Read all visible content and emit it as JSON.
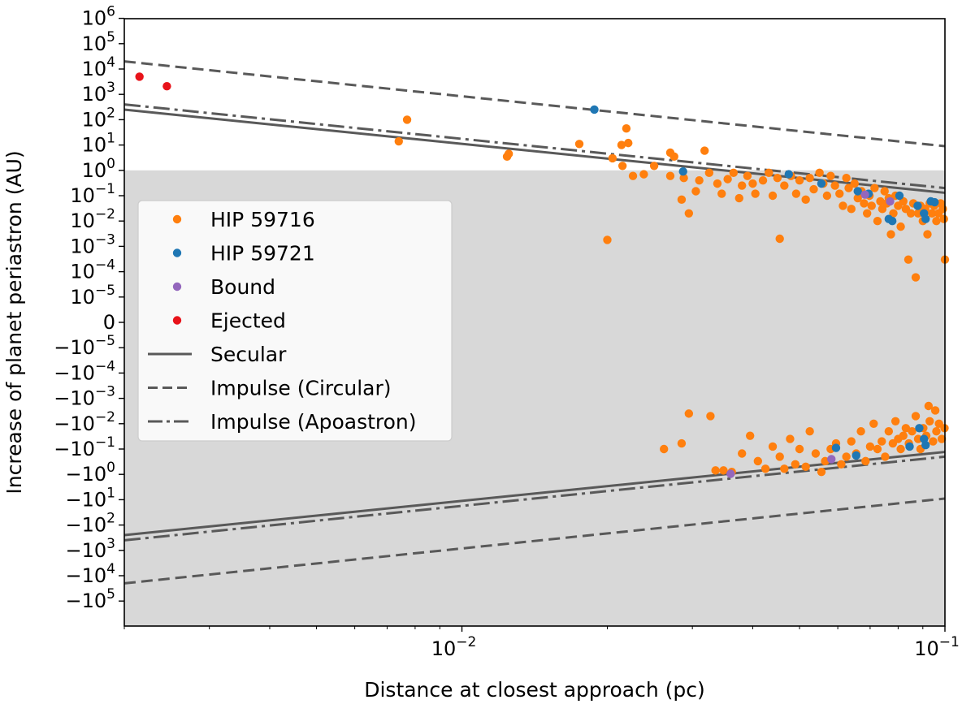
{
  "chart_data": {
    "type": "scatter",
    "xlabel": "Distance at closest approach (pc)",
    "ylabel": "Increase of planet periastron (AU)",
    "x_scale": "log",
    "y_scale": "symlog",
    "xlim": [
      0.002,
      0.1
    ],
    "ylim": [
      -1000000,
      1000000
    ],
    "x_ticks": [
      {
        "value": 0.01,
        "base": "10",
        "exp": "−2"
      },
      {
        "value": 0.1,
        "base": "10",
        "exp": "−1"
      }
    ],
    "y_ticks": [
      {
        "value": 1000000,
        "base": "10",
        "exp": "6"
      },
      {
        "value": 100000,
        "base": "10",
        "exp": "5"
      },
      {
        "value": 10000,
        "base": "10",
        "exp": "4"
      },
      {
        "value": 1000,
        "base": "10",
        "exp": "3"
      },
      {
        "value": 100,
        "base": "10",
        "exp": "2"
      },
      {
        "value": 10,
        "base": "10",
        "exp": "1"
      },
      {
        "value": 1,
        "base": "10",
        "exp": "0"
      },
      {
        "value": 0.1,
        "base": "10",
        "exp": "−1"
      },
      {
        "value": 0.01,
        "base": "10",
        "exp": "−2"
      },
      {
        "value": 0.001,
        "base": "10",
        "exp": "−3"
      },
      {
        "value": 0.0001,
        "base": "10",
        "exp": "−4"
      },
      {
        "value": 1e-05,
        "base": "10",
        "exp": "−5"
      },
      {
        "value": 0,
        "base": "0",
        "exp": ""
      },
      {
        "value": -1e-05,
        "base": "−10",
        "exp": "−5"
      },
      {
        "value": -0.0001,
        "base": "−10",
        "exp": "−4"
      },
      {
        "value": -0.001,
        "base": "−10",
        "exp": "−3"
      },
      {
        "value": -0.01,
        "base": "−10",
        "exp": "−2"
      },
      {
        "value": -0.1,
        "base": "−10",
        "exp": "−1"
      },
      {
        "value": -1,
        "base": "−10",
        "exp": "0"
      },
      {
        "value": -10,
        "base": "−10",
        "exp": "1"
      },
      {
        "value": -100,
        "base": "−10",
        "exp": "2"
      },
      {
        "value": -1000,
        "base": "−10",
        "exp": "3"
      },
      {
        "value": -10000,
        "base": "−10",
        "exp": "4"
      },
      {
        "value": -100000,
        "base": "−10",
        "exp": "5"
      }
    ],
    "shaded_region": {
      "y_from": -1000000,
      "y_to": 1,
      "color": "#d8d8d8"
    },
    "legend": {
      "location": "center-left",
      "entries": [
        {
          "label": "HIP 59716",
          "kind": "marker",
          "color": "#ff7f0e"
        },
        {
          "label": "HIP 59721",
          "kind": "marker",
          "color": "#1f77b4"
        },
        {
          "label": "Bound",
          "kind": "marker",
          "color": "#9467bd"
        },
        {
          "label": "Ejected",
          "kind": "marker",
          "color": "#e8131a"
        },
        {
          "label": "Secular",
          "kind": "line",
          "style": "solid",
          "color": "#595959"
        },
        {
          "label": "Impulse (Circular)",
          "kind": "line",
          "style": "dashed",
          "color": "#595959"
        },
        {
          "label": "Impulse (Apoastron)",
          "kind": "line",
          "style": "dashdot",
          "color": "#595959"
        }
      ]
    },
    "lines": [
      {
        "name": "Secular",
        "style": "solid",
        "color": "#595959",
        "upper": {
          "x": [
            0.002,
            0.1
          ],
          "y": [
            250,
            0.13
          ]
        },
        "lower": {
          "x": [
            0.002,
            0.1
          ],
          "y": [
            -250,
            -0.13
          ]
        }
      },
      {
        "name": "Impulse (Circular)",
        "style": "dashed",
        "color": "#595959",
        "upper": {
          "x": [
            0.002,
            0.1
          ],
          "y": [
            20000,
            9
          ]
        },
        "lower": {
          "x": [
            0.002,
            0.1
          ],
          "y": [
            -20000,
            -9
          ]
        }
      },
      {
        "name": "Impulse (Apoastron)",
        "style": "dashdot",
        "color": "#595959",
        "upper": {
          "x": [
            0.002,
            0.1
          ],
          "y": [
            400,
            0.2
          ]
        },
        "lower": {
          "x": [
            0.002,
            0.1
          ],
          "y": [
            -400,
            -0.2
          ]
        }
      }
    ],
    "series": [
      {
        "name": "HIP 59716",
        "color": "#ff7f0e",
        "points": [
          [
            0.0074,
            14
          ],
          [
            0.0077,
            100
          ],
          [
            0.0125,
            4.5
          ],
          [
            0.0124,
            3.5
          ],
          [
            0.0175,
            11
          ],
          [
            0.02,
            0.0018
          ],
          [
            0.0205,
            3
          ],
          [
            0.0214,
            10
          ],
          [
            0.0219,
            45
          ],
          [
            0.0221,
            12
          ],
          [
            0.0215,
            1.5
          ],
          [
            0.0226,
            0.6
          ],
          [
            0.0238,
            0.7
          ],
          [
            0.025,
            1.5
          ],
          [
            0.027,
            0.6
          ],
          [
            0.027,
            5
          ],
          [
            0.0275,
            3.5
          ],
          [
            0.0285,
            0.07
          ],
          [
            0.0288,
            0.5
          ],
          [
            0.0295,
            0.02
          ],
          [
            0.0305,
            0.15
          ],
          [
            0.031,
            0.4
          ],
          [
            0.0318,
            6
          ],
          [
            0.0325,
            0.8
          ],
          [
            0.0338,
            0.3
          ],
          [
            0.0345,
            0.12
          ],
          [
            0.0355,
            0.45
          ],
          [
            0.0365,
            0.8
          ],
          [
            0.0375,
            0.08
          ],
          [
            0.038,
            0.25
          ],
          [
            0.039,
            0.6
          ],
          [
            0.04,
            0.3
          ],
          [
            0.0405,
            0.12
          ],
          [
            0.042,
            0.4
          ],
          [
            0.0432,
            0.8
          ],
          [
            0.044,
            0.1
          ],
          [
            0.045,
            0.5
          ],
          [
            0.0455,
            0.002
          ],
          [
            0.0465,
            0.25
          ],
          [
            0.048,
            0.6
          ],
          [
            0.0492,
            0.12
          ],
          [
            0.05,
            0.4
          ],
          [
            0.0515,
            0.07
          ],
          [
            0.0525,
            0.5
          ],
          [
            0.0535,
            0.18
          ],
          [
            0.055,
            0.8
          ],
          [
            0.056,
            0.3
          ],
          [
            0.057,
            0.1
          ],
          [
            0.058,
            0.6
          ],
          [
            0.0592,
            0.25
          ],
          [
            0.0605,
            0.12
          ],
          [
            0.0615,
            0.04
          ],
          [
            0.0625,
            0.5
          ],
          [
            0.0632,
            0.2
          ],
          [
            0.064,
            0.03
          ],
          [
            0.065,
            0.3
          ],
          [
            0.066,
            0.08
          ],
          [
            0.0672,
            0.15
          ],
          [
            0.068,
            0.05
          ],
          [
            0.069,
            0.02
          ],
          [
            0.0698,
            0.1
          ],
          [
            0.0705,
            0.04
          ],
          [
            0.0715,
            0.2
          ],
          [
            0.0725,
            0.01
          ],
          [
            0.0735,
            0.06
          ],
          [
            0.0742,
            0.03
          ],
          [
            0.075,
            0.15
          ],
          [
            0.0758,
            0.05
          ],
          [
            0.0765,
            0.08
          ],
          [
            0.0773,
            0.003
          ],
          [
            0.0782,
            0.02
          ],
          [
            0.079,
            0.1
          ],
          [
            0.08,
            0.04
          ],
          [
            0.081,
            0.006
          ],
          [
            0.082,
            0.06
          ],
          [
            0.083,
            0.03
          ],
          [
            0.084,
            0.0003
          ],
          [
            0.085,
            0.02
          ],
          [
            0.086,
            0.05
          ],
          [
            0.087,
            6e-05
          ],
          [
            0.088,
            0.02
          ],
          [
            0.089,
            0.04
          ],
          [
            0.09,
            0.01
          ],
          [
            0.091,
            0.03
          ],
          [
            0.092,
            0.003
          ],
          [
            0.093,
            0.05
          ],
          [
            0.094,
            0.02
          ],
          [
            0.095,
            0.04
          ],
          [
            0.096,
            0.01
          ],
          [
            0.097,
            0.02
          ],
          [
            0.098,
            0.05
          ],
          [
            0.099,
            0.03
          ],
          [
            0.1,
            0.0003
          ],
          [
            0.0995,
            0.012
          ],
          [
            0.0295,
            -0.004
          ],
          [
            0.0327,
            -0.005
          ],
          [
            0.0262,
            -0.1
          ],
          [
            0.0285,
            -0.06
          ],
          [
            0.0335,
            -0.7
          ],
          [
            0.0348,
            -0.7
          ],
          [
            0.0362,
            -0.8
          ],
          [
            0.038,
            -0.15
          ],
          [
            0.0395,
            -0.03
          ],
          [
            0.041,
            -0.3
          ],
          [
            0.0425,
            -0.6
          ],
          [
            0.044,
            -0.08
          ],
          [
            0.0455,
            -0.2
          ],
          [
            0.0465,
            -0.6
          ],
          [
            0.0478,
            -0.04
          ],
          [
            0.049,
            -0.4
          ],
          [
            0.05,
            -0.1
          ],
          [
            0.0515,
            -0.5
          ],
          [
            0.0525,
            -0.02
          ],
          [
            0.054,
            -0.15
          ],
          [
            0.0555,
            -0.8
          ],
          [
            0.0565,
            -0.3
          ],
          [
            0.058,
            -0.1
          ],
          [
            0.0595,
            -0.06
          ],
          [
            0.061,
            -0.4
          ],
          [
            0.0625,
            -0.2
          ],
          [
            0.064,
            -0.05
          ],
          [
            0.0655,
            -0.15
          ],
          [
            0.067,
            -0.02
          ],
          [
            0.0685,
            -0.3
          ],
          [
            0.07,
            -0.08
          ],
          [
            0.0712,
            -0.01
          ],
          [
            0.0725,
            -0.1
          ],
          [
            0.074,
            -0.05
          ],
          [
            0.0752,
            -0.2
          ],
          [
            0.0765,
            -0.02
          ],
          [
            0.078,
            -0.06
          ],
          [
            0.079,
            -0.008
          ],
          [
            0.08,
            -0.04
          ],
          [
            0.081,
            -0.1
          ],
          [
            0.082,
            -0.03
          ],
          [
            0.083,
            -0.015
          ],
          [
            0.0842,
            -0.06
          ],
          [
            0.0855,
            -0.02
          ],
          [
            0.087,
            -0.005
          ],
          [
            0.088,
            -0.04
          ],
          [
            0.089,
            -0.1
          ],
          [
            0.0902,
            -0.015
          ],
          [
            0.0915,
            -0.03
          ],
          [
            0.093,
            -0.008
          ],
          [
            0.0945,
            -0.05
          ],
          [
            0.096,
            -0.02
          ],
          [
            0.0972,
            -0.01
          ],
          [
            0.0985,
            -0.04
          ],
          [
            0.0998,
            -0.015
          ],
          [
            0.0925,
            -0.002
          ],
          [
            0.0955,
            -0.003
          ]
        ]
      },
      {
        "name": "HIP 59721",
        "color": "#1f77b4",
        "points": [
          [
            0.0188,
            250
          ],
          [
            0.0287,
            0.9
          ],
          [
            0.0475,
            0.7
          ],
          [
            0.0555,
            0.3
          ],
          [
            0.066,
            0.15
          ],
          [
            0.0695,
            0.12
          ],
          [
            0.0765,
            0.012
          ],
          [
            0.0778,
            0.01
          ],
          [
            0.0805,
            0.1
          ],
          [
            0.0878,
            0.04
          ],
          [
            0.0905,
            0.02
          ],
          [
            0.0912,
            0.012
          ],
          [
            0.0935,
            0.06
          ],
          [
            0.0952,
            0.055
          ],
          [
            0.0595,
            -0.09
          ],
          [
            0.0655,
            -0.18
          ],
          [
            0.0845,
            -0.08
          ],
          [
            0.0885,
            -0.015
          ],
          [
            0.0905,
            -0.04
          ],
          [
            0.0912,
            -0.07
          ]
        ]
      },
      {
        "name": "Bound",
        "color": "#9467bd",
        "points": [
          [
            0.0683,
            0.11
          ],
          [
            0.077,
            0.06
          ],
          [
            0.0582,
            -0.25
          ],
          [
            0.036,
            -0.95
          ]
        ]
      },
      {
        "name": "Ejected",
        "color": "#e8131a",
        "points": [
          [
            0.00215,
            5000
          ],
          [
            0.00245,
            2100
          ]
        ]
      }
    ]
  }
}
